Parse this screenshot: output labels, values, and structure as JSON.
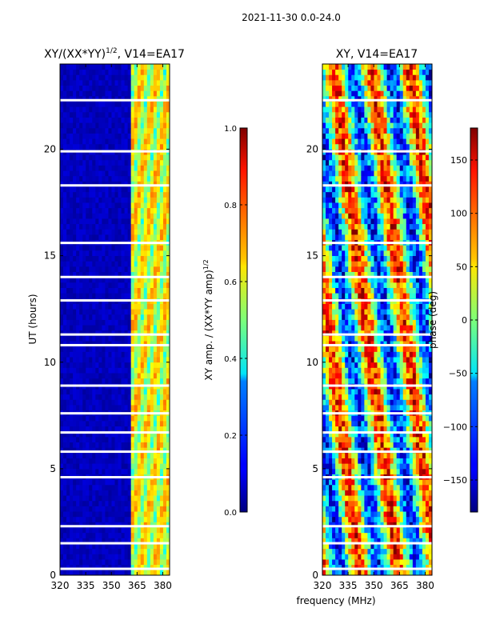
{
  "figure": {
    "suptitle": "2021-11-30 0.0-24.0",
    "shared_xlabel": "frequency (MHz)"
  },
  "chart_data": [
    {
      "type": "heatmap",
      "title_main": "XY/(XX*YY)",
      "title_sup": "1/2",
      "title_suffix": ", V14=EA17",
      "xlabel": "",
      "ylabel": "UT (hours)",
      "xlim": [
        320,
        384
      ],
      "ylim": [
        0,
        24
      ],
      "xticks": [
        320,
        335,
        350,
        365,
        380
      ],
      "yticks": [
        0,
        5,
        10,
        15,
        20
      ],
      "colorbar": {
        "label_main": "XY amp. / (XX*YY amp)",
        "label_sup": "1/2",
        "range": [
          0.0,
          1.0
        ],
        "ticks": [
          "0.0",
          "0.2",
          "0.4",
          "0.6",
          "0.8",
          "1.0"
        ],
        "colormap": "jet"
      }
    },
    {
      "type": "heatmap",
      "title_main": "XY, V14=EA17",
      "xlabel": "frequency (MHz)",
      "ylabel": "",
      "xlim": [
        320,
        384
      ],
      "ylim": [
        0,
        24
      ],
      "xticks": [
        320,
        335,
        350,
        365,
        380
      ],
      "yticks": [
        0,
        5,
        10,
        15,
        20
      ],
      "colorbar": {
        "label_main": "phase (deg)",
        "range": [
          -180,
          180
        ],
        "ticks": [
          "−150",
          "−100",
          "−50",
          "0",
          "50",
          "100",
          "150"
        ],
        "tick_values": [
          -150,
          -100,
          -50,
          0,
          50,
          100,
          150
        ],
        "colormap": "jet"
      }
    }
  ]
}
